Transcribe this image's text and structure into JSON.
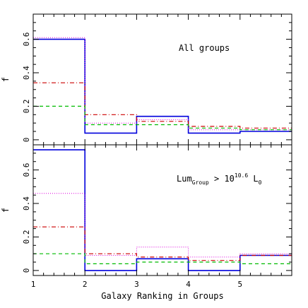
{
  "chart_data": [
    {
      "type": "step",
      "panel": "top",
      "annotation": "All groups",
      "ylabel": "f",
      "xlabel": "",
      "xlim": [
        1,
        6
      ],
      "ylim": [
        -0.03,
        0.75
      ],
      "y_ticks": [
        0,
        0.2,
        0.4,
        0.6
      ],
      "y_tick_labels": [
        "0",
        "0.2",
        "0.4",
        "0.6"
      ],
      "x_ticks": [
        1,
        2,
        3,
        4,
        5
      ],
      "x_edges": [
        1,
        2,
        3,
        4,
        5,
        6
      ],
      "series": [
        {
          "color": "#0000dd",
          "dash": "",
          "width": 1.6,
          "values": [
            0.6,
            0.04,
            0.14,
            0.04,
            0.05
          ]
        },
        {
          "color": "#dd00dd",
          "dash": "1,2",
          "width": 1.0,
          "values": [
            0.61,
            0.1,
            0.12,
            0.06,
            0.06
          ]
        },
        {
          "color": "#cc0000",
          "dash": "6,3,1,3",
          "width": 1.2,
          "values": [
            0.34,
            0.15,
            0.11,
            0.08,
            0.07
          ]
        },
        {
          "color": "#00bb00",
          "dash": "5,4",
          "width": 1.2,
          "values": [
            0.2,
            0.09,
            0.09,
            0.07,
            0.06
          ]
        }
      ]
    },
    {
      "type": "step",
      "panel": "bottom",
      "annotation": {
        "prefix": "Lum",
        "sub": "Group",
        "mid": " > 10",
        "sup": "10.6",
        "tail": " L",
        "tail_sub": "0"
      },
      "ylabel": "f",
      "xlabel": "Galaxy Ranking in Groups",
      "xlim": [
        1,
        6
      ],
      "ylim": [
        -0.03,
        0.75
      ],
      "y_ticks": [
        0,
        0.2,
        0.4,
        0.6
      ],
      "y_tick_labels": [
        "0",
        "0.2",
        "0.4",
        "0.6"
      ],
      "x_ticks": [
        1,
        2,
        3,
        4,
        5
      ],
      "x_tick_labels": [
        "1",
        "2",
        "3",
        "4",
        "5"
      ],
      "x_edges": [
        1,
        2,
        3,
        4,
        5,
        6
      ],
      "series": [
        {
          "color": "#0000dd",
          "dash": "",
          "width": 1.6,
          "values": [
            0.72,
            0.0,
            0.07,
            0.0,
            0.09
          ]
        },
        {
          "color": "#dd00dd",
          "dash": "1,2",
          "width": 1.0,
          "values": [
            0.46,
            0.09,
            0.14,
            0.08,
            0.1
          ]
        },
        {
          "color": "#cc0000",
          "dash": "6,3,1,3",
          "width": 1.2,
          "values": [
            0.26,
            0.1,
            0.08,
            0.06,
            0.09
          ]
        },
        {
          "color": "#00bb00",
          "dash": "5,4",
          "width": 1.2,
          "values": [
            0.1,
            0.04,
            0.05,
            0.05,
            0.04
          ]
        }
      ]
    }
  ]
}
